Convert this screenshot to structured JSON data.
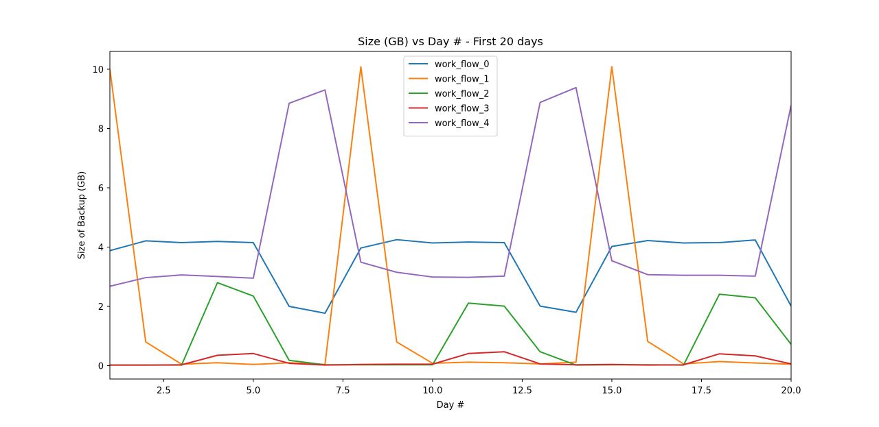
{
  "chart_data": {
    "type": "line",
    "title": "Size (GB) vs Day # - First 20 days",
    "xlabel": "Day #",
    "ylabel": "Size of Backup (GB)",
    "xlim": [
      1,
      20
    ],
    "ylim": [
      -0.45,
      10.6
    ],
    "xticks": [
      2.5,
      5.0,
      7.5,
      10.0,
      12.5,
      15.0,
      17.5,
      20.0
    ],
    "xtick_labels": [
      "2.5",
      "5.0",
      "7.5",
      "10.0",
      "12.5",
      "15.0",
      "17.5",
      "20.0"
    ],
    "yticks": [
      0,
      2,
      4,
      6,
      8,
      10
    ],
    "ytick_labels": [
      "0",
      "2",
      "4",
      "6",
      "8",
      "10"
    ],
    "grid": false,
    "legend_position": "top-center",
    "x": [
      1,
      2,
      3,
      4,
      5,
      6,
      7,
      8,
      9,
      10,
      11,
      12,
      13,
      14,
      15,
      16,
      17,
      18,
      19,
      20
    ],
    "series": [
      {
        "name": "work_flow_0",
        "color": "#1f77b4",
        "values": [
          3.88,
          4.21,
          4.15,
          4.19,
          4.15,
          2.0,
          1.77,
          3.97,
          4.25,
          4.14,
          4.17,
          4.15,
          2.01,
          1.8,
          4.02,
          4.22,
          4.14,
          4.15,
          4.24,
          2.01
        ]
      },
      {
        "name": "work_flow_1",
        "color": "#ff7f0e",
        "values": [
          10.0,
          0.8,
          0.05,
          0.1,
          0.04,
          0.1,
          0.04,
          10.08,
          0.8,
          0.08,
          0.12,
          0.1,
          0.06,
          0.12,
          10.08,
          0.82,
          0.06,
          0.14,
          0.09,
          0.05
        ]
      },
      {
        "name": "work_flow_2",
        "color": "#2ca02c",
        "values": [
          0.02,
          0.02,
          0.02,
          2.8,
          2.35,
          0.18,
          0.03,
          0.03,
          0.03,
          0.03,
          2.11,
          2.01,
          0.47,
          0.02,
          0.03,
          0.03,
          0.02,
          2.41,
          2.29,
          0.72
        ]
      },
      {
        "name": "work_flow_3",
        "color": "#d62728",
        "values": [
          0.02,
          0.02,
          0.03,
          0.35,
          0.41,
          0.08,
          0.02,
          0.04,
          0.05,
          0.05,
          0.41,
          0.47,
          0.06,
          0.03,
          0.04,
          0.02,
          0.03,
          0.4,
          0.33,
          0.06
        ]
      },
      {
        "name": "work_flow_4",
        "color": "#9467bd",
        "values": [
          2.68,
          2.97,
          3.06,
          3.01,
          2.95,
          8.85,
          9.3,
          3.49,
          3.15,
          2.99,
          2.98,
          3.02,
          8.88,
          9.38,
          3.54,
          3.07,
          3.05,
          3.05,
          3.02,
          8.78
        ]
      }
    ]
  }
}
